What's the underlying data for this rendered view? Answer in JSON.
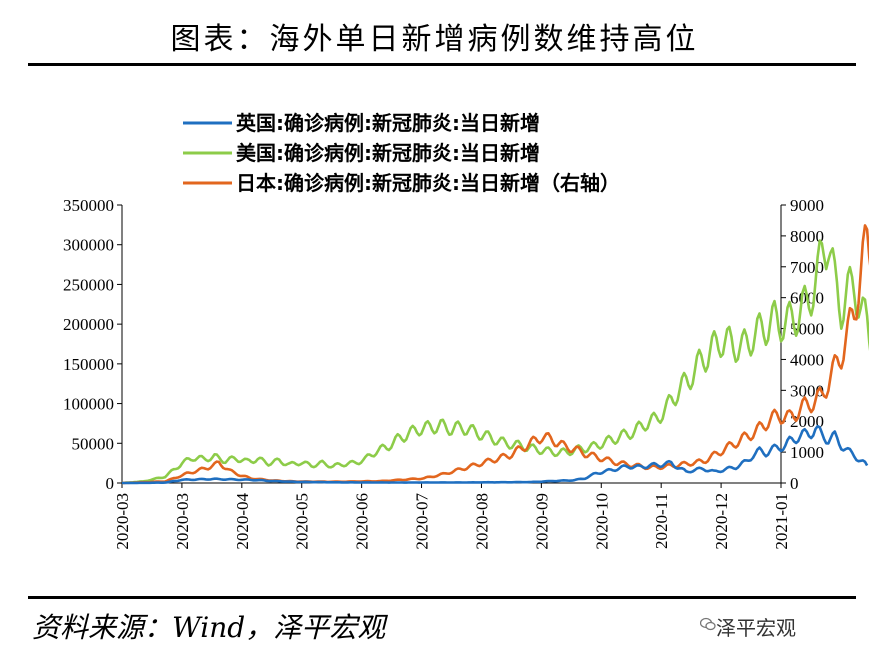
{
  "header": {
    "title": "图表：海外单日新增病例数维持高位"
  },
  "footer": {
    "source": "资料来源：Wind，泽平宏观",
    "watermark": "泽平宏观"
  },
  "chart_data": {
    "type": "line",
    "title": "图表：海外单日新增病例数维持高位",
    "xlabel": "",
    "ylabel_left": "",
    "ylabel_right": "",
    "x_ticks": [
      "2020-03",
      "2020-03",
      "2020-04",
      "2020-05",
      "2020-06",
      "2020-07",
      "2020-08",
      "2020-09",
      "2020-10",
      "2020-11",
      "2020-12",
      "2021-01"
    ],
    "y_left": {
      "min": 0,
      "max": 350000,
      "ticks": [
        0,
        50000,
        100000,
        150000,
        200000,
        250000,
        300000,
        350000
      ],
      "tick_labels": [
        "0",
        "50000",
        "100000",
        "150000",
        "200000",
        "250000",
        "300000",
        "350000"
      ]
    },
    "y_right": {
      "min": 0,
      "max": 9000,
      "ticks": [
        0,
        1000,
        2000,
        3000,
        4000,
        5000,
        6000,
        7000,
        8000,
        9000
      ],
      "tick_labels": [
        "0",
        "1000",
        "2000",
        "3000",
        "4000",
        "5000",
        "6000",
        "7000",
        "8000",
        "9000"
      ]
    },
    "x_range_days": [
      0,
      306
    ],
    "series": [
      {
        "name": "英国:确诊病例:新冠肺炎:当日新增",
        "color": "#1f6fc0",
        "axis": "left",
        "points": [
          [
            0,
            0
          ],
          [
            20,
            500
          ],
          [
            28,
            4000
          ],
          [
            35,
            4500
          ],
          [
            42,
            5000
          ],
          [
            50,
            4500
          ],
          [
            60,
            4000
          ],
          [
            70,
            2500
          ],
          [
            80,
            1500
          ],
          [
            100,
            800
          ],
          [
            130,
            600
          ],
          [
            160,
            700
          ],
          [
            180,
            1000
          ],
          [
            190,
            1200
          ],
          [
            200,
            2500
          ],
          [
            210,
            3500
          ],
          [
            215,
            6000
          ],
          [
            220,
            12000
          ],
          [
            225,
            15000
          ],
          [
            230,
            18000
          ],
          [
            235,
            21000
          ],
          [
            240,
            20000
          ],
          [
            245,
            22000
          ],
          [
            250,
            23000
          ],
          [
            255,
            25000
          ],
          [
            258,
            20000
          ],
          [
            262,
            14000
          ],
          [
            265,
            16000
          ],
          [
            270,
            18000
          ],
          [
            275,
            14000
          ],
          [
            280,
            17000
          ],
          [
            285,
            20000
          ],
          [
            290,
            27000
          ],
          [
            293,
            35000
          ],
          [
            296,
            40000
          ],
          [
            299,
            38000
          ],
          [
            302,
            42000
          ],
          [
            305,
            45000
          ],
          [
            308,
            47000
          ],
          [
            310,
            52000
          ],
          [
            313,
            57000
          ],
          [
            316,
            60000
          ],
          [
            319,
            62000
          ],
          [
            322,
            68000
          ],
          [
            325,
            60000
          ],
          [
            328,
            55000
          ],
          [
            331,
            58000
          ],
          [
            334,
            48000
          ],
          [
            337,
            40000
          ],
          [
            340,
            35000
          ],
          [
            343,
            28000
          ],
          [
            346,
            22000
          ]
        ]
      },
      {
        "name": "美国:确诊病例:新冠肺炎:当日新增",
        "color": "#8dcc49",
        "axis": "left",
        "points": [
          [
            0,
            0
          ],
          [
            10,
            2000
          ],
          [
            20,
            8000
          ],
          [
            28,
            25000
          ],
          [
            33,
            32000
          ],
          [
            38,
            30000
          ],
          [
            43,
            33000
          ],
          [
            48,
            28000
          ],
          [
            53,
            31000
          ],
          [
            58,
            27000
          ],
          [
            63,
            30000
          ],
          [
            68,
            25000
          ],
          [
            73,
            28000
          ],
          [
            78,
            23000
          ],
          [
            83,
            26000
          ],
          [
            88,
            22000
          ],
          [
            93,
            25000
          ],
          [
            98,
            21000
          ],
          [
            103,
            24000
          ],
          [
            108,
            25000
          ],
          [
            113,
            30000
          ],
          [
            118,
            40000
          ],
          [
            123,
            45000
          ],
          [
            128,
            55000
          ],
          [
            133,
            62000
          ],
          [
            138,
            68000
          ],
          [
            143,
            70000
          ],
          [
            148,
            72000
          ],
          [
            153,
            68000
          ],
          [
            158,
            70000
          ],
          [
            163,
            65000
          ],
          [
            168,
            60000
          ],
          [
            173,
            55000
          ],
          [
            178,
            50000
          ],
          [
            183,
            48000
          ],
          [
            188,
            45000
          ],
          [
            193,
            42000
          ],
          [
            198,
            40000
          ],
          [
            203,
            38000
          ],
          [
            208,
            40000
          ],
          [
            213,
            43000
          ],
          [
            218,
            45000
          ],
          [
            223,
            50000
          ],
          [
            228,
            55000
          ],
          [
            233,
            60000
          ],
          [
            238,
            65000
          ],
          [
            243,
            75000
          ],
          [
            248,
            80000
          ],
          [
            253,
            95000
          ],
          [
            258,
            115000
          ],
          [
            263,
            130000
          ],
          [
            268,
            150000
          ],
          [
            273,
            165000
          ],
          [
            278,
            180000
          ],
          [
            283,
            175000
          ],
          [
            288,
            170000
          ],
          [
            293,
            185000
          ],
          [
            298,
            195000
          ],
          [
            303,
            205000
          ],
          [
            308,
            200000
          ],
          [
            313,
            210000
          ],
          [
            318,
            225000
          ],
          [
            323,
            260000
          ],
          [
            326,
            300000
          ],
          [
            328,
            310000
          ],
          [
            331,
            250000
          ],
          [
            334,
            220000
          ],
          [
            337,
            240000
          ],
          [
            340,
            250000
          ],
          [
            343,
            220000
          ],
          [
            346,
            200000
          ],
          [
            349,
            160000
          ]
        ]
      },
      {
        "name": "日本:确诊病例:新冠肺炎:当日新增（右轴）",
        "color": "#e2661e",
        "axis": "right",
        "points": [
          [
            0,
            0
          ],
          [
            20,
            50
          ],
          [
            30,
            300
          ],
          [
            40,
            500
          ],
          [
            45,
            650
          ],
          [
            50,
            400
          ],
          [
            55,
            250
          ],
          [
            60,
            150
          ],
          [
            70,
            80
          ],
          [
            80,
            50
          ],
          [
            100,
            40
          ],
          [
            120,
            60
          ],
          [
            140,
            150
          ],
          [
            150,
            300
          ],
          [
            160,
            500
          ],
          [
            170,
            700
          ],
          [
            180,
            900
          ],
          [
            190,
            1300
          ],
          [
            195,
            1500
          ],
          [
            200,
            1400
          ],
          [
            205,
            1200
          ],
          [
            210,
            1100
          ],
          [
            215,
            950
          ],
          [
            220,
            850
          ],
          [
            225,
            750
          ],
          [
            230,
            650
          ],
          [
            235,
            600
          ],
          [
            240,
            550
          ],
          [
            245,
            500
          ],
          [
            250,
            520
          ],
          [
            255,
            550
          ],
          [
            260,
            600
          ],
          [
            265,
            650
          ],
          [
            270,
            700
          ],
          [
            275,
            900
          ],
          [
            280,
            1100
          ],
          [
            285,
            1300
          ],
          [
            290,
            1500
          ],
          [
            295,
            1700
          ],
          [
            300,
            2000
          ],
          [
            305,
            2200
          ],
          [
            310,
            2100
          ],
          [
            315,
            2400
          ],
          [
            320,
            2600
          ],
          [
            325,
            2800
          ],
          [
            328,
            3300
          ],
          [
            331,
            3700
          ],
          [
            334,
            4200
          ],
          [
            337,
            4800
          ],
          [
            340,
            5600
          ],
          [
            343,
            6800
          ],
          [
            346,
            7800
          ],
          [
            349,
            7500
          ],
          [
            352,
            5500
          ],
          [
            355,
            4800
          ],
          [
            358,
            4000
          ],
          [
            360,
            3300
          ],
          [
            362,
            2700
          ]
        ]
      }
    ],
    "legend": [
      "英国:确诊病例:新冠肺炎:当日新增",
      "美国:确诊病例:新冠肺炎:当日新增",
      "日本:确诊病例:新冠肺炎:当日新增（右轴）"
    ],
    "legend_position": "top-center"
  }
}
